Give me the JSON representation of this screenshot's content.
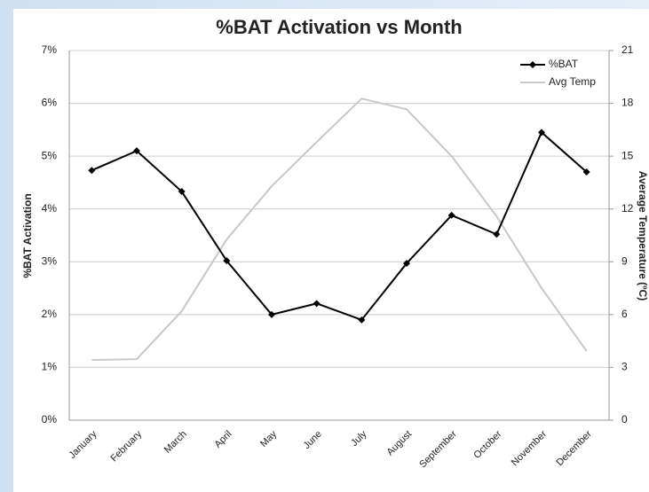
{
  "chart_data": {
    "type": "line",
    "title": "%BAT Activation vs Month",
    "y_label": "%BAT Activation",
    "y2_label": "Average Temperature (ºC)",
    "categories": [
      "January",
      "February",
      "March",
      "April",
      "May",
      "June",
      "July",
      "August",
      "September",
      "October",
      "November",
      "December"
    ],
    "series": [
      {
        "name": "%BAT",
        "color": "#000000",
        "values": [
          4.73,
          5.1,
          4.33,
          3.02,
          2.0,
          2.21,
          1.9,
          2.97,
          3.88,
          3.52,
          5.45,
          4.7
        ]
      },
      {
        "name": "Avg Temp",
        "color": "#c8c8c8",
        "axis": "y2",
        "values": [
          3.42,
          3.47,
          6.19,
          10.27,
          13.29,
          15.8,
          18.27,
          17.66,
          15.0,
          11.58,
          7.5,
          3.93
        ]
      }
    ],
    "ylim": [
      0,
      7
    ],
    "yticks": [
      {
        "value": 0,
        "label": "0%"
      },
      {
        "value": 1,
        "label": "1%"
      },
      {
        "value": 2,
        "label": "2%"
      },
      {
        "value": 3,
        "label": "3%"
      },
      {
        "value": 4,
        "label": "4%"
      },
      {
        "value": 5,
        "label": "5%"
      },
      {
        "value": 6,
        "label": "6%"
      },
      {
        "value": 7,
        "label": "7%"
      }
    ],
    "y2lim": [
      0,
      21
    ],
    "y2ticks": [
      0,
      3,
      6,
      9,
      12,
      15,
      18,
      21
    ],
    "grid": true,
    "legend": "top-right"
  }
}
